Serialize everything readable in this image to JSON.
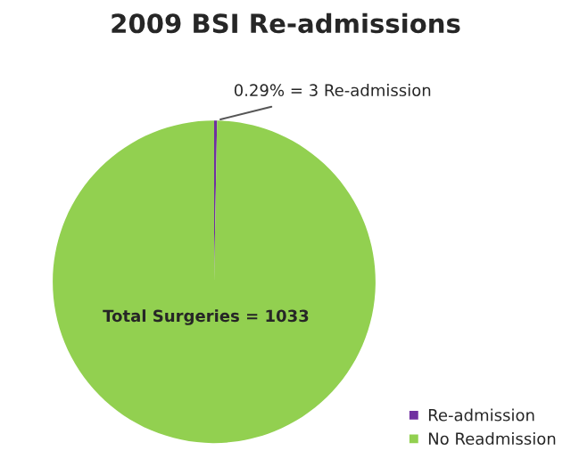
{
  "chart_data": {
    "type": "pie",
    "title": "2009 BSI Re-admissions",
    "categories": [
      "Re-admission",
      "No Readmission"
    ],
    "values": [
      3,
      1030
    ],
    "colors": [
      "#7030a0",
      "#92d050"
    ],
    "value_labels": [
      "0.29% = 3 Re-admission",
      null
    ],
    "annotations": [
      "Total Surgeries = 1033"
    ],
    "legend": "bottom right"
  }
}
